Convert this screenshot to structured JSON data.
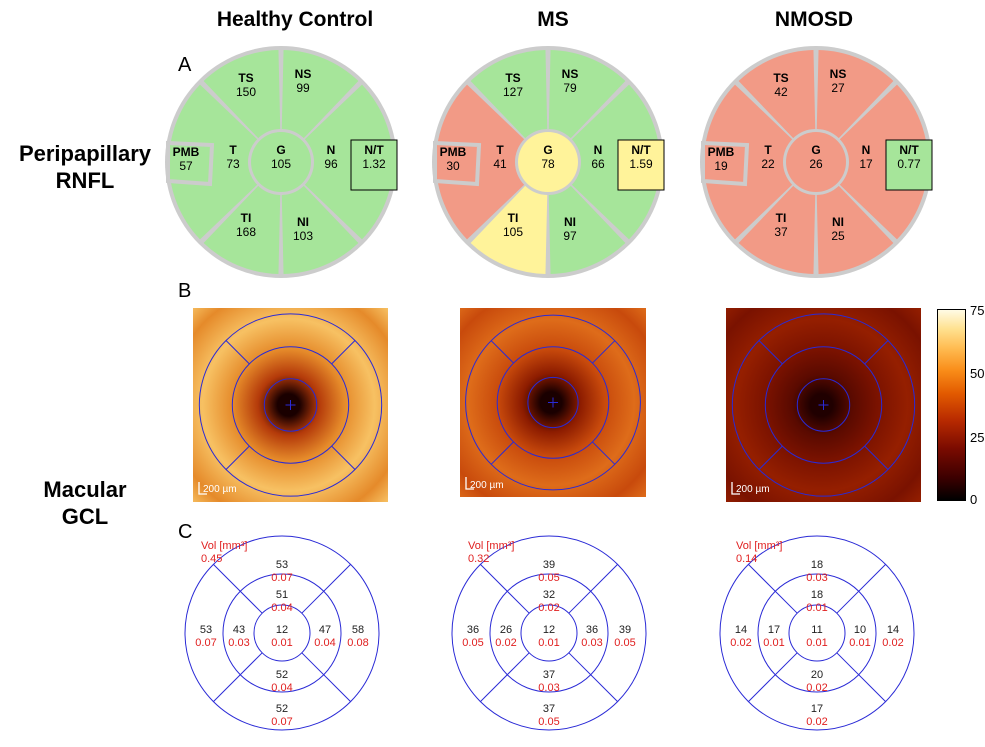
{
  "columns": [
    "Healthy Control",
    "MS",
    "NMOSD"
  ],
  "row_labels": {
    "rnfl": [
      "Peripapillary",
      "RNFL"
    ],
    "gcl": [
      "Macular",
      "GCL"
    ]
  },
  "panel_letters": [
    "A",
    "B",
    "C"
  ],
  "status_colors": {
    "normal": "#a6e59a",
    "borderline": "#fff39a",
    "abnormal": "#f29a86",
    "divider": "#cccccc"
  },
  "rnfl": [
    {
      "TS": "150",
      "NS": "99",
      "T": "73",
      "G": "105",
      "N": "96",
      "PMB": "57",
      "NT": "1.32",
      "TI": "168",
      "NI": "103",
      "status": {
        "TS": "normal",
        "NS": "normal",
        "T": "normal",
        "G": "normal",
        "N": "normal",
        "PMB": "normal",
        "NT": "normal",
        "TI": "normal",
        "NI": "normal"
      }
    },
    {
      "TS": "127",
      "NS": "79",
      "T": "41",
      "G": "78",
      "N": "66",
      "PMB": "30",
      "NT": "1.59",
      "TI": "105",
      "NI": "97",
      "status": {
        "TS": "normal",
        "NS": "normal",
        "T": "abnormal",
        "G": "borderline",
        "N": "normal",
        "PMB": "abnormal",
        "NT": "borderline",
        "TI": "borderline",
        "NI": "normal"
      }
    },
    {
      "TS": "42",
      "NS": "27",
      "T": "22",
      "G": "26",
      "N": "17",
      "PMB": "19",
      "NT": "0.77",
      "TI": "37",
      "NI": "25",
      "status": {
        "TS": "abnormal",
        "NS": "abnormal",
        "T": "abnormal",
        "G": "abnormal",
        "N": "abnormal",
        "PMB": "abnormal",
        "NT": "normal",
        "TI": "abnormal",
        "NI": "abnormal"
      }
    }
  ],
  "sector_labels": {
    "TS": "TS",
    "NS": "NS",
    "T": "T",
    "G": "G",
    "N": "N",
    "PMB": "PMB",
    "NT": "N/T",
    "TI": "TI",
    "NI": "NI"
  },
  "heatmap": {
    "colorbar_ticks": [
      "75",
      "50",
      "25",
      "0"
    ],
    "scale_label": "200 µm",
    "maps": [
      {
        "outer": "#f7c163",
        "mid": "#e58a2a",
        "inner": "#b43a0a",
        "center": "#1a0000"
      },
      {
        "outer": "#de6c1a",
        "mid": "#c84a0c",
        "inner": "#8d1c00",
        "center": "#1a0000"
      },
      {
        "outer": "#951f00",
        "mid": "#7a1200",
        "inner": "#5a0a00",
        "center": "#200000"
      }
    ]
  },
  "volumes": {
    "unit_label": "Vol [mm³]",
    "grids": [
      {
        "total": "0.45",
        "outer_top": [
          "53",
          "0.07"
        ],
        "inner_top": [
          "51",
          "0.04"
        ],
        "outer_left": [
          "53",
          "0.07"
        ],
        "inner_left": [
          "43",
          "0.03"
        ],
        "center": [
          "12",
          "0.01"
        ],
        "inner_right": [
          "47",
          "0.04"
        ],
        "outer_right": [
          "58",
          "0.08"
        ],
        "inner_bottom": [
          "52",
          "0.04"
        ],
        "outer_bottom": [
          "52",
          "0.07"
        ]
      },
      {
        "total": "0.32",
        "outer_top": [
          "39",
          "0.05"
        ],
        "inner_top": [
          "32",
          "0.02"
        ],
        "outer_left": [
          "36",
          "0.05"
        ],
        "inner_left": [
          "26",
          "0.02"
        ],
        "center": [
          "12",
          "0.01"
        ],
        "inner_right": [
          "36",
          "0.03"
        ],
        "outer_right": [
          "39",
          "0.05"
        ],
        "inner_bottom": [
          "37",
          "0.03"
        ],
        "outer_bottom": [
          "37",
          "0.05"
        ]
      },
      {
        "total": "0.14",
        "outer_top": [
          "18",
          "0.03"
        ],
        "inner_top": [
          "18",
          "0.01"
        ],
        "outer_left": [
          "14",
          "0.02"
        ],
        "inner_left": [
          "17",
          "0.01"
        ],
        "center": [
          "11",
          "0.01"
        ],
        "inner_right": [
          "10",
          "0.01"
        ],
        "outer_right": [
          "14",
          "0.02"
        ],
        "inner_bottom": [
          "20",
          "0.02"
        ],
        "outer_bottom": [
          "17",
          "0.02"
        ]
      }
    ]
  }
}
